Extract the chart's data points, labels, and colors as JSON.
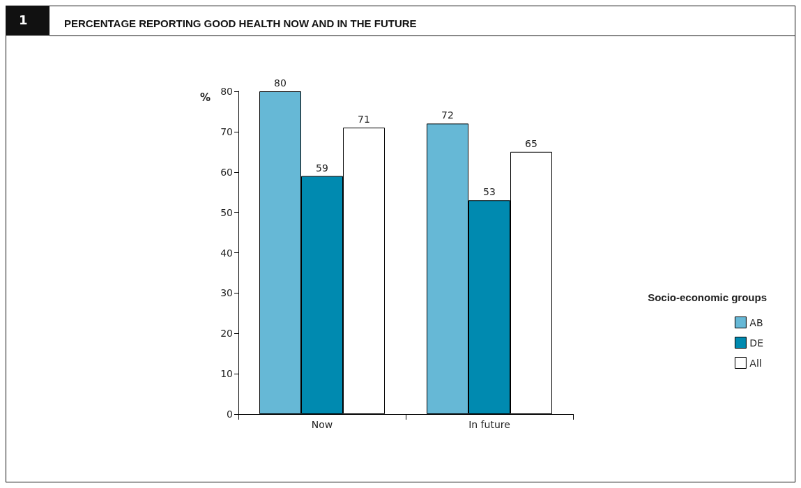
{
  "chart_data": {
    "type": "bar",
    "title": "PERCENTAGE REPORTING GOOD HEALTH NOW AND IN THE FUTURE",
    "annotations": [
      "1"
    ],
    "ylabel": "%",
    "legend_title": "Socio-economic groups",
    "categories": [
      "Now",
      "In future"
    ],
    "series": [
      {
        "name": "AB",
        "color": "#66b8d6",
        "values": [
          80,
          72
        ]
      },
      {
        "name": "DE",
        "color": "#008ab0",
        "values": [
          59,
          53
        ]
      },
      {
        "name": "All",
        "color": "#ffffff",
        "values": [
          71,
          65
        ]
      }
    ],
    "ylim": [
      0,
      80
    ],
    "yticks": [
      0,
      10,
      20,
      30,
      40,
      50,
      60,
      70,
      80
    ],
    "grid": false,
    "legend": "right",
    "data_labels": true
  }
}
